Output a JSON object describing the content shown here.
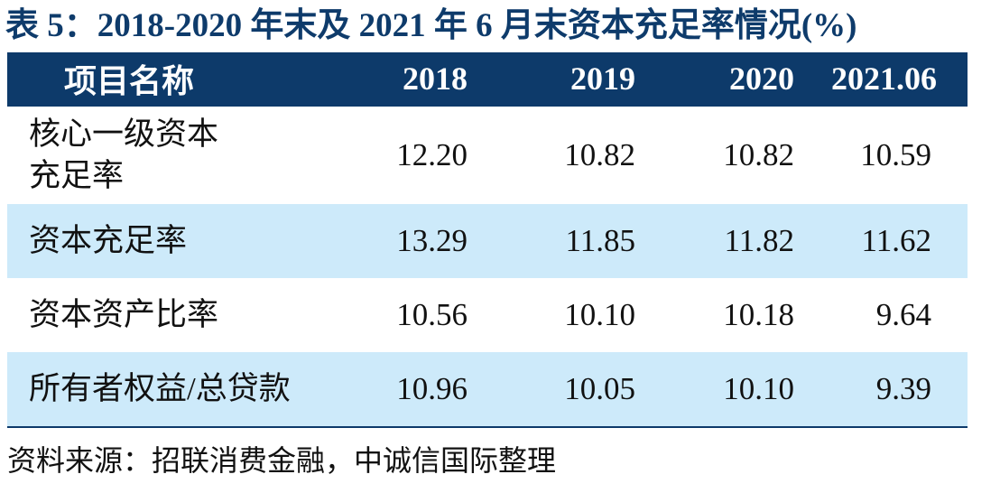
{
  "title": "表 5：2018-2020 年末及 2021 年 6 月末资本充足率情况(%)",
  "table": {
    "header": {
      "name": "项目名称",
      "years": [
        "2018",
        "2019",
        "2020",
        "2021.06"
      ]
    },
    "rows": [
      {
        "name": "核心一级资本充足率",
        "values": [
          "12.20",
          "10.82",
          "10.82",
          "10.59"
        ]
      },
      {
        "name": "资本充足率",
        "values": [
          "13.29",
          "11.85",
          "11.82",
          "11.62"
        ]
      },
      {
        "name": "资本资产比率",
        "values": [
          "10.56",
          "10.10",
          "10.18",
          "9.64"
        ]
      },
      {
        "name": "所有者权益/总贷款",
        "values": [
          "10.96",
          "10.05",
          "10.10",
          "9.39"
        ]
      }
    ]
  },
  "source": "资料来源：招联消费金融，中诚信国际整理",
  "colors": {
    "title": "#0e3b6b",
    "header_bg": "#0d3a6a",
    "alt_row_bg": "#cdeafa"
  }
}
